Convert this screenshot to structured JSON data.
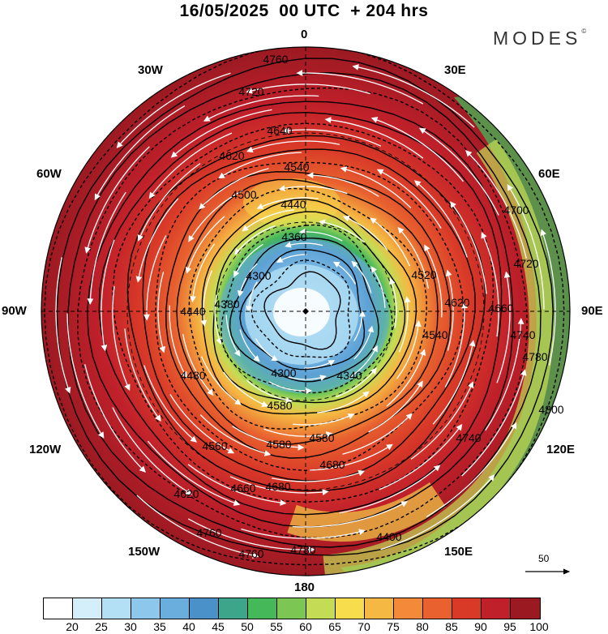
{
  "header": {
    "title": "16/05/2025  00 UTC  + 204 hrs",
    "brand": "MODES"
  },
  "longitude_labels": [
    "0",
    "30E",
    "60E",
    "90E",
    "120E",
    "150E",
    "180",
    "150W",
    "120W",
    "90W",
    "60W",
    "30W"
  ],
  "contour_labels": [
    "4760",
    "4720",
    "4640",
    "4620",
    "4540",
    "4500",
    "4440",
    "4360",
    "4300",
    "4380",
    "4440",
    "4480",
    "4580",
    "4580",
    "4660",
    "4620",
    "4580",
    "4520",
    "4540",
    "4560",
    "4660",
    "4700",
    "4720",
    "4740",
    "4780",
    "4800",
    "4740",
    "4680",
    "4680",
    "4620",
    "4760",
    "4760",
    "4780",
    "4400",
    "4340",
    "4300"
  ],
  "wind_scale": {
    "label": "50"
  },
  "colorbar": {
    "ticks": [
      "20",
      "25",
      "30",
      "35",
      "40",
      "45",
      "50",
      "55",
      "60",
      "65",
      "70",
      "75",
      "80",
      "85",
      "90",
      "95",
      "100"
    ],
    "colors": [
      "#ffffff",
      "#d4eefa",
      "#b3e0f5",
      "#8dc8ec",
      "#6aaedd",
      "#4a90c9",
      "#3da68a",
      "#45b85a",
      "#7cc653",
      "#c4dc55",
      "#f7dc4c",
      "#f5b843",
      "#f28a3a",
      "#e8612f",
      "#d93a28",
      "#c0202a",
      "#9b1a22"
    ]
  }
}
